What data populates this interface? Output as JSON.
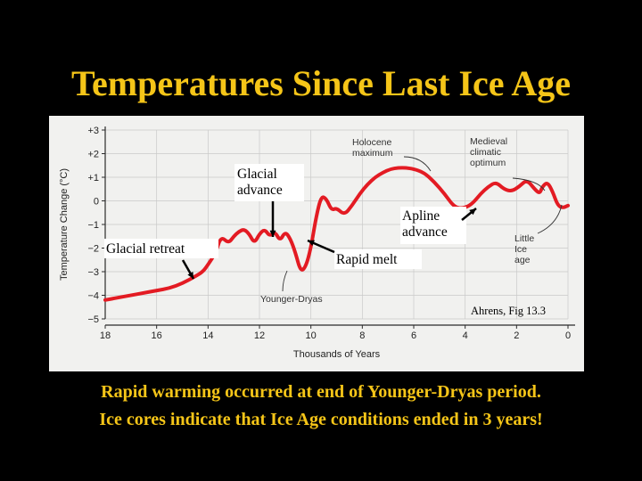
{
  "slide": {
    "title": "Temperatures Since Last Ice Age",
    "caption_lines": [
      "Rapid warming occurred at end of Younger-Dryas period.",
      "Ice cores indicate that Ice Age conditions ended in 3 years!"
    ]
  },
  "colors": {
    "background": "#000000",
    "title": "#f5c518",
    "caption": "#f5c518",
    "panel": "#f1f1ef",
    "curve": "#e31b23",
    "axis": "#2b2b2b",
    "annotation_box": "#ffffff"
  },
  "chart_data": {
    "type": "line",
    "xlabel": "Thousands of Years",
    "ylabel": "Temperature Change (°C)",
    "xlim": [
      18,
      0
    ],
    "ylim": [
      -5,
      3
    ],
    "x_reversed": true,
    "grid": true,
    "x_ticks": [
      "18",
      "16",
      "14",
      "12",
      "10",
      "8",
      "6",
      "4",
      "2",
      "0"
    ],
    "x_tick_values": [
      18,
      16,
      14,
      12,
      10,
      8,
      6,
      4,
      2,
      0
    ],
    "y_ticks": [
      "+3",
      "+2",
      "+1",
      "0",
      "−1",
      "−2",
      "−3",
      "−4",
      "−5"
    ],
    "y_tick_values": [
      3,
      2,
      1,
      0,
      -1,
      -2,
      -3,
      -4,
      -5
    ],
    "series": [
      {
        "x": [
          18,
          17.5,
          17,
          16.5,
          16,
          15.5,
          15,
          14.5,
          14.2,
          14,
          13.7,
          13.5,
          13.2,
          13,
          12.8,
          12.6,
          12.4,
          12.2,
          12,
          11.8,
          11.6,
          11.4,
          11.2,
          11,
          10.8,
          10.6,
          10.4,
          10.2,
          10,
          9.8,
          9.6,
          9.4,
          9.2,
          9,
          8.7,
          8.4,
          8.1,
          7.8,
          7.5,
          7.2,
          6.9,
          6.6,
          6.3,
          6,
          5.6,
          5.2,
          4.8,
          4.4,
          4,
          3.7,
          3.4,
          3.1,
          2.8,
          2.5,
          2.2,
          1.9,
          1.6,
          1.3,
          1.1,
          1,
          0.8,
          0.6,
          0.4,
          0.2,
          0
        ],
        "values": [
          -4.2,
          -4.1,
          -4.0,
          -3.9,
          -3.8,
          -3.7,
          -3.5,
          -3.2,
          -3.0,
          -2.7,
          -2.2,
          -1.5,
          -1.8,
          -1.5,
          -1.3,
          -1.2,
          -1.4,
          -1.8,
          -1.4,
          -1.2,
          -1.5,
          -1.3,
          -1.7,
          -1.3,
          -1.6,
          -2.2,
          -3.0,
          -2.8,
          -2.0,
          -0.7,
          0.2,
          0.1,
          -0.4,
          -0.3,
          -0.6,
          -0.2,
          0.3,
          0.7,
          1.0,
          1.2,
          1.35,
          1.4,
          1.4,
          1.35,
          1.2,
          0.8,
          0.3,
          -0.3,
          -0.3,
          -0.1,
          0.3,
          0.6,
          0.8,
          0.5,
          0.4,
          0.6,
          0.9,
          0.5,
          0.3,
          0.6,
          0.8,
          0.4,
          -0.2,
          -0.3,
          -0.2
        ]
      }
    ],
    "figure_labels": {
      "holocene": "Holocene\nmaximum",
      "medieval": "Medieval\nclimatic\noptimum",
      "little_ice_age": "Little\nIce\nage",
      "younger_dryas": "Younger-Dryas"
    },
    "overlays": {
      "glacial_advance": "Glacial\nadvance",
      "glacial_retreat": "Glacial retreat",
      "apline_advance": "Apline\nadvance",
      "rapid_melt": "Rapid melt",
      "source": "Ahrens, Fig 13.3"
    }
  }
}
